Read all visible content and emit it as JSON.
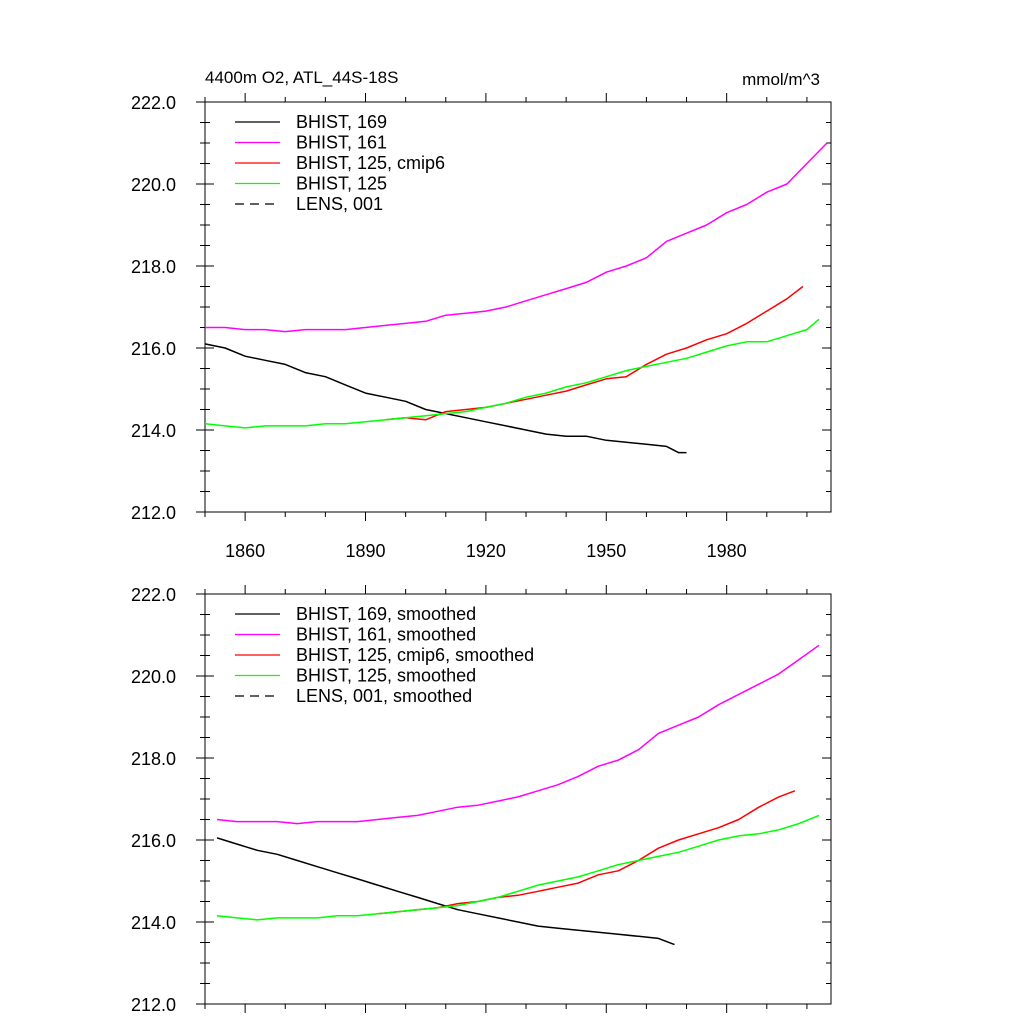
{
  "header": {
    "title": "4400m O2, ATL_44S-18S",
    "units": "mmol/m^3"
  },
  "chart_data": [
    {
      "type": "line",
      "title": "4400m O2, ATL_44S-18S",
      "ylabel": "mmol/m^3",
      "xlim": [
        1850,
        2006
      ],
      "ylim": [
        212,
        222
      ],
      "ytick_labels": [
        "212.0",
        "214.0",
        "216.0",
        "218.0",
        "220.0",
        "222.0"
      ],
      "xtick_labels": [
        "1860",
        "1890",
        "1920",
        "1950",
        "1980"
      ],
      "legend": "top-left",
      "series": [
        {
          "name": "BHIST, 169",
          "color": "#000000",
          "dash": false,
          "x": [
            1850,
            1855,
            1860,
            1865,
            1870,
            1875,
            1880,
            1885,
            1890,
            1895,
            1900,
            1905,
            1910,
            1915,
            1920,
            1925,
            1930,
            1935,
            1940,
            1945,
            1950,
            1955,
            1960,
            1965,
            1968,
            1970
          ],
          "y": [
            216.1,
            216.0,
            215.8,
            215.7,
            215.6,
            215.4,
            215.3,
            215.1,
            214.9,
            214.8,
            214.7,
            214.5,
            214.4,
            214.3,
            214.2,
            214.1,
            214.0,
            213.9,
            213.85,
            213.85,
            213.75,
            213.7,
            213.65,
            213.6,
            213.45,
            213.45
          ]
        },
        {
          "name": "BHIST, 161",
          "color": "#ff00ff",
          "dash": false,
          "x": [
            1850,
            1855,
            1860,
            1865,
            1870,
            1875,
            1880,
            1885,
            1890,
            1895,
            1900,
            1905,
            1910,
            1915,
            1920,
            1925,
            1930,
            1935,
            1940,
            1945,
            1950,
            1955,
            1960,
            1965,
            1970,
            1975,
            1980,
            1985,
            1990,
            1995,
            2000,
            2005
          ],
          "y": [
            216.5,
            216.5,
            216.45,
            216.45,
            216.4,
            216.45,
            216.45,
            216.45,
            216.5,
            216.55,
            216.6,
            216.65,
            216.8,
            216.85,
            216.9,
            217.0,
            217.15,
            217.3,
            217.45,
            217.6,
            217.85,
            218.0,
            218.2,
            218.6,
            218.8,
            219.0,
            219.3,
            219.5,
            219.8,
            220.0,
            220.5,
            221.0
          ]
        },
        {
          "name": "BHIST, 125, cmip6",
          "color": "#ff0000",
          "dash": false,
          "x": [
            1895,
            1900,
            1905,
            1910,
            1915,
            1920,
            1925,
            1930,
            1935,
            1940,
            1945,
            1950,
            1955,
            1960,
            1965,
            1970,
            1975,
            1980,
            1985,
            1990,
            1995,
            1999
          ],
          "y": [
            214.25,
            214.3,
            214.25,
            214.45,
            214.5,
            214.55,
            214.65,
            214.75,
            214.85,
            214.95,
            215.1,
            215.25,
            215.3,
            215.6,
            215.85,
            216.0,
            216.2,
            216.35,
            216.6,
            216.9,
            217.2,
            217.5
          ]
        },
        {
          "name": "BHIST, 125",
          "color": "#00ff00",
          "dash": false,
          "x": [
            1850,
            1855,
            1860,
            1865,
            1870,
            1875,
            1880,
            1885,
            1890,
            1895,
            1900,
            1905,
            1910,
            1915,
            1920,
            1925,
            1930,
            1935,
            1940,
            1945,
            1950,
            1955,
            1960,
            1965,
            1970,
            1975,
            1980,
            1985,
            1990,
            1995,
            2000,
            2003
          ],
          "y": [
            214.15,
            214.1,
            214.05,
            214.1,
            214.1,
            214.1,
            214.15,
            214.15,
            214.2,
            214.25,
            214.3,
            214.35,
            214.4,
            214.45,
            214.55,
            214.65,
            214.8,
            214.9,
            215.05,
            215.15,
            215.3,
            215.45,
            215.55,
            215.65,
            215.75,
            215.9,
            216.05,
            216.15,
            216.15,
            216.3,
            216.45,
            216.7
          ]
        },
        {
          "name": "LENS, 001",
          "color": "#000000",
          "dash": true,
          "x": [],
          "y": []
        }
      ]
    },
    {
      "type": "line",
      "title": "",
      "ylabel": "",
      "xlim": [
        1850,
        2006
      ],
      "ylim": [
        212,
        222
      ],
      "ytick_labels": [
        "212.0",
        "214.0",
        "216.0",
        "218.0",
        "220.0",
        "222.0"
      ],
      "xtick_labels": [],
      "legend": "top-left",
      "series": [
        {
          "name": "BHIST, 169, smoothed",
          "color": "#000000",
          "dash": false,
          "x": [
            1853,
            1858,
            1863,
            1868,
            1873,
            1878,
            1883,
            1888,
            1893,
            1898,
            1903,
            1908,
            1913,
            1918,
            1923,
            1928,
            1933,
            1938,
            1943,
            1948,
            1953,
            1958,
            1963,
            1967
          ],
          "y": [
            216.05,
            215.9,
            215.75,
            215.65,
            215.5,
            215.35,
            215.2,
            215.05,
            214.9,
            214.75,
            214.6,
            214.45,
            214.3,
            214.2,
            214.1,
            214.0,
            213.9,
            213.85,
            213.8,
            213.75,
            213.7,
            213.65,
            213.6,
            213.45
          ]
        },
        {
          "name": "BHIST, 161, smoothed",
          "color": "#ff00ff",
          "dash": false,
          "x": [
            1853,
            1858,
            1863,
            1868,
            1873,
            1878,
            1883,
            1888,
            1893,
            1898,
            1903,
            1908,
            1913,
            1918,
            1923,
            1928,
            1933,
            1938,
            1943,
            1948,
            1953,
            1958,
            1963,
            1968,
            1973,
            1978,
            1983,
            1988,
            1993,
            1998,
            2003
          ],
          "y": [
            216.5,
            216.45,
            216.45,
            216.45,
            216.4,
            216.45,
            216.45,
            216.45,
            216.5,
            216.55,
            216.6,
            216.7,
            216.8,
            216.85,
            216.95,
            217.05,
            217.2,
            217.35,
            217.55,
            217.8,
            217.95,
            218.2,
            218.6,
            218.8,
            219.0,
            219.3,
            219.55,
            219.8,
            220.05,
            220.4,
            220.75
          ]
        },
        {
          "name": "BHIST, 125, cmip6, smoothed",
          "color": "#ff0000",
          "dash": false,
          "x": [
            1893,
            1898,
            1903,
            1908,
            1913,
            1918,
            1923,
            1928,
            1933,
            1938,
            1943,
            1948,
            1953,
            1958,
            1963,
            1968,
            1973,
            1978,
            1983,
            1988,
            1993,
            1997
          ],
          "y": [
            214.2,
            214.25,
            214.3,
            214.35,
            214.45,
            214.5,
            214.6,
            214.65,
            214.75,
            214.85,
            214.95,
            215.15,
            215.25,
            215.5,
            215.8,
            216.0,
            216.15,
            216.3,
            216.5,
            216.8,
            217.05,
            217.2
          ]
        },
        {
          "name": "BHIST, 125, smoothed",
          "color": "#00ff00",
          "dash": false,
          "x": [
            1853,
            1858,
            1863,
            1868,
            1873,
            1878,
            1883,
            1888,
            1893,
            1898,
            1903,
            1908,
            1913,
            1918,
            1923,
            1928,
            1933,
            1938,
            1943,
            1948,
            1953,
            1958,
            1963,
            1968,
            1973,
            1978,
            1983,
            1988,
            1993,
            1998,
            2003
          ],
          "y": [
            214.15,
            214.1,
            214.05,
            214.1,
            214.1,
            214.1,
            214.15,
            214.15,
            214.2,
            214.25,
            214.3,
            214.35,
            214.4,
            214.5,
            214.6,
            214.75,
            214.9,
            215.0,
            215.1,
            215.25,
            215.4,
            215.5,
            215.6,
            215.7,
            215.85,
            216.0,
            216.1,
            216.15,
            216.25,
            216.4,
            216.6
          ]
        },
        {
          "name": "LENS, 001, smoothed",
          "color": "#000000",
          "dash": true,
          "x": [],
          "y": []
        }
      ]
    }
  ]
}
